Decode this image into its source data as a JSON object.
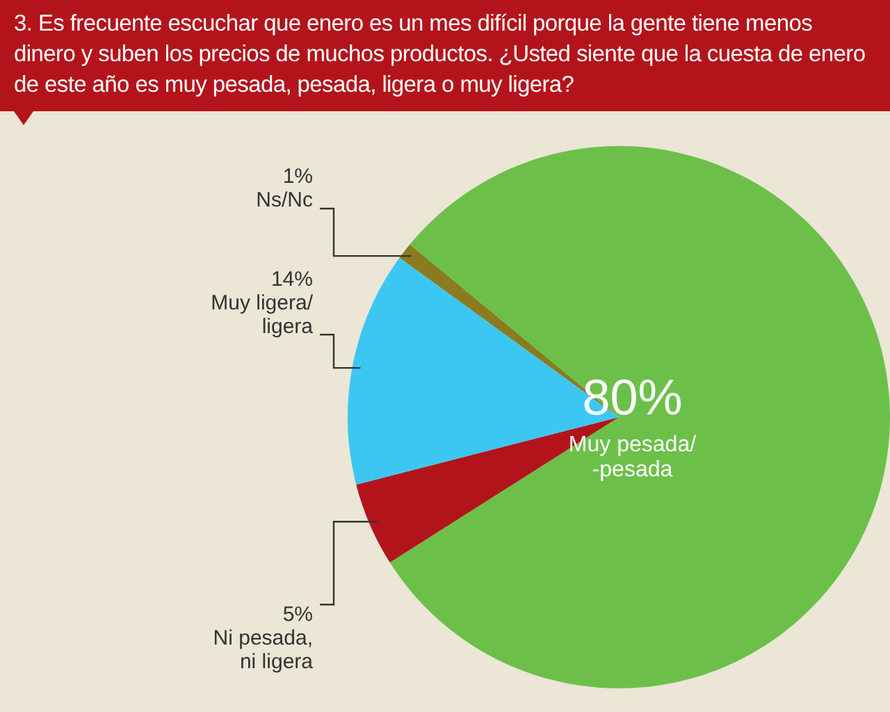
{
  "chart_data": {
    "type": "pie",
    "title": "3. Es frecuente escuchar que enero es un mes difícil porque la gente tiene menos dinero y suben los precios de muchos productos. ¿Usted siente que la cuesta de enero de este año es muy pesada, pesada, ligera o muy ligera?",
    "categories": [
      "Ns/Nc",
      "Muy pesada/-pesada",
      "Ni pesada, ni ligera",
      "Muy ligera/ligera"
    ],
    "values": [
      1,
      80,
      5,
      14
    ],
    "value_labels": [
      "1%",
      "80%",
      "5%",
      "14%"
    ],
    "colors": [
      "#8a7b1f",
      "#6cc04a",
      "#b3141c",
      "#3cc7f2"
    ],
    "legend": false
  }
}
